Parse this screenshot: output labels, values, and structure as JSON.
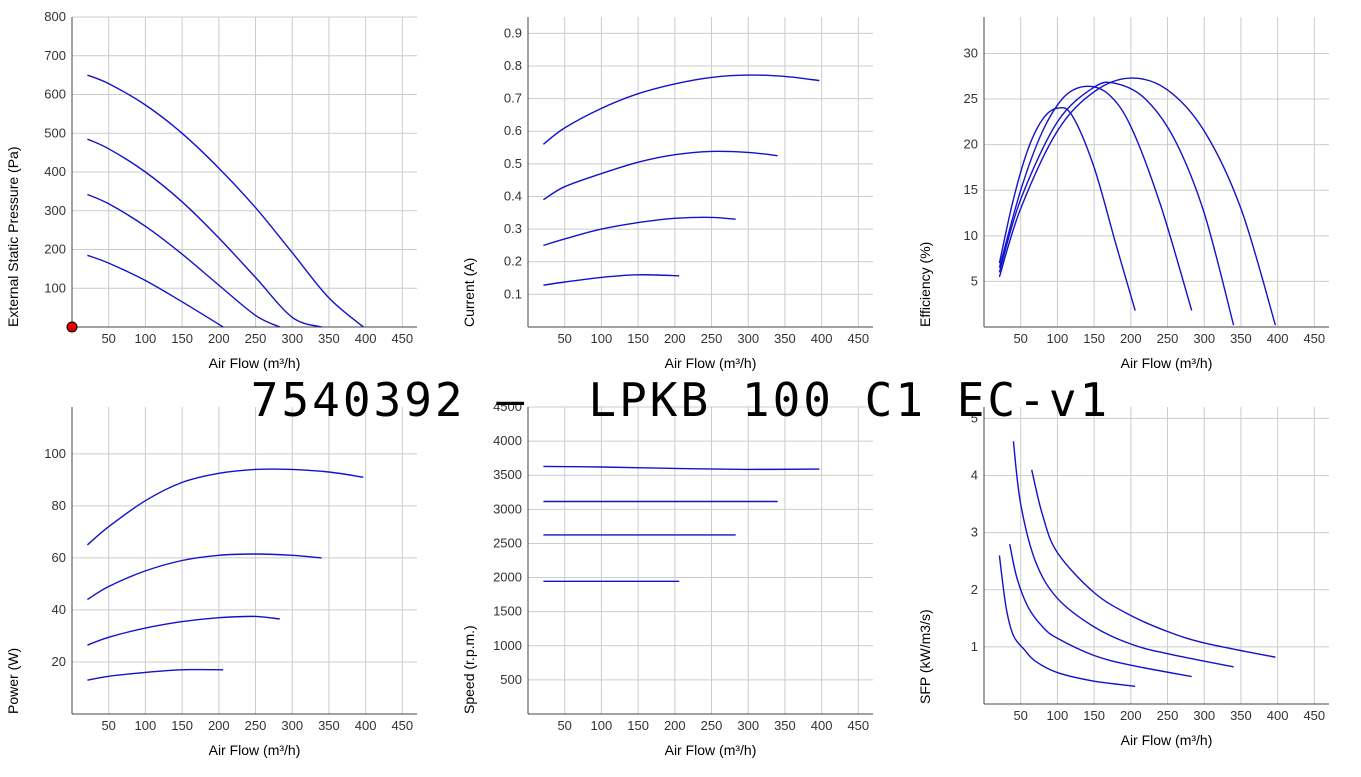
{
  "overlay_title": "7540392 –  LPKB 100 C1 EC-v1",
  "colors": {
    "curve": "#1212cc",
    "grid": "#cccccc",
    "axis": "#444444",
    "text": "#000000",
    "marker": "#e00000"
  },
  "chart_data": [
    {
      "id": "pressure",
      "type": "line",
      "xlabel": "Air Flow (m³/h)",
      "ylabel": "External Static Pressure (Pa)",
      "xlim": [
        0,
        470
      ],
      "ylim": [
        0,
        800
      ],
      "xticks": [
        50,
        100,
        150,
        200,
        250,
        300,
        350,
        400,
        450
      ],
      "yticks": [
        100,
        200,
        300,
        400,
        500,
        600,
        700,
        800
      ],
      "grid": true,
      "marker": {
        "x": 0,
        "y": 0
      },
      "series": [
        {
          "x": [
            21,
            50,
            100,
            150,
            200,
            250,
            300,
            350,
            397
          ],
          "y": [
            650,
            628,
            573,
            500,
            410,
            308,
            192,
            75,
            0
          ]
        },
        {
          "x": [
            21,
            50,
            100,
            150,
            200,
            250,
            300,
            340
          ],
          "y": [
            485,
            460,
            400,
            323,
            230,
            128,
            25,
            0
          ]
        },
        {
          "x": [
            21,
            50,
            100,
            150,
            200,
            250,
            283
          ],
          "y": [
            342,
            318,
            260,
            188,
            108,
            30,
            0
          ]
        },
        {
          "x": [
            21,
            50,
            100,
            150,
            206
          ],
          "y": [
            185,
            165,
            120,
            65,
            0
          ]
        }
      ]
    },
    {
      "id": "current",
      "type": "line",
      "xlabel": "Air Flow (m³/h)",
      "ylabel": "Current (A)",
      "xlim": [
        0,
        470
      ],
      "ylim": [
        0,
        0.95
      ],
      "xticks": [
        50,
        100,
        150,
        200,
        250,
        300,
        350,
        400,
        450
      ],
      "yticks": [
        0.1,
        0.2,
        0.3,
        0.4,
        0.5,
        0.6,
        0.7,
        0.8,
        0.9
      ],
      "grid": true,
      "series": [
        {
          "x": [
            21,
            50,
            100,
            150,
            200,
            250,
            300,
            350,
            397
          ],
          "y": [
            0.56,
            0.61,
            0.67,
            0.715,
            0.745,
            0.765,
            0.772,
            0.768,
            0.755
          ]
        },
        {
          "x": [
            21,
            50,
            100,
            150,
            200,
            250,
            300,
            340
          ],
          "y": [
            0.39,
            0.43,
            0.47,
            0.505,
            0.528,
            0.538,
            0.535,
            0.525
          ]
        },
        {
          "x": [
            21,
            50,
            100,
            150,
            200,
            250,
            283
          ],
          "y": [
            0.25,
            0.27,
            0.3,
            0.32,
            0.333,
            0.336,
            0.33
          ]
        },
        {
          "x": [
            21,
            50,
            100,
            150,
            206
          ],
          "y": [
            0.128,
            0.138,
            0.152,
            0.16,
            0.157
          ]
        }
      ]
    },
    {
      "id": "efficiency",
      "type": "line",
      "xlabel": "Air Flow (m³/h)",
      "ylabel": "Efficiency (%)",
      "xlim": [
        0,
        470
      ],
      "ylim": [
        0,
        34
      ],
      "xticks": [
        50,
        100,
        150,
        200,
        250,
        300,
        350,
        400,
        450
      ],
      "yticks": [
        5,
        10,
        15,
        20,
        25,
        30
      ],
      "grid": true,
      "series": [
        {
          "x": [
            21,
            40,
            60,
            80,
            100,
            120,
            150,
            180,
            206
          ],
          "y": [
            7.0,
            14.0,
            19.5,
            22.8,
            24.0,
            23.2,
            17.5,
            9.0,
            1.8
          ]
        },
        {
          "x": [
            21,
            50,
            80,
            110,
            140,
            170,
            200,
            240,
            283
          ],
          "y": [
            6.5,
            15.0,
            21.5,
            25.3,
            26.4,
            25.5,
            22.0,
            13.5,
            1.8
          ]
        },
        {
          "x": [
            21,
            50,
            100,
            150,
            180,
            220,
            260,
            300,
            340
          ],
          "y": [
            6.0,
            14.0,
            22.5,
            26.3,
            26.7,
            25.0,
            20.5,
            12.5,
            0.2
          ]
        },
        {
          "x": [
            21,
            50,
            100,
            150,
            200,
            250,
            300,
            350,
            397
          ],
          "y": [
            5.5,
            13.0,
            21.5,
            25.8,
            27.3,
            26.0,
            21.5,
            13.0,
            0.2
          ]
        }
      ]
    },
    {
      "id": "power",
      "type": "line",
      "xlabel": "Air Flow (m³/h)",
      "ylabel": "Power (W)",
      "xlim": [
        0,
        470
      ],
      "ylim": [
        0,
        118
      ],
      "xticks": [
        50,
        100,
        150,
        200,
        250,
        300,
        350,
        400,
        450
      ],
      "yticks": [
        20,
        40,
        60,
        80,
        100
      ],
      "grid": true,
      "series": [
        {
          "x": [
            21,
            50,
            100,
            150,
            200,
            250,
            300,
            350,
            397
          ],
          "y": [
            65,
            72,
            82,
            89,
            92.5,
            94,
            94,
            93,
            91
          ]
        },
        {
          "x": [
            21,
            50,
            100,
            150,
            200,
            250,
            300,
            340
          ],
          "y": [
            44,
            49,
            55,
            59,
            61,
            61.5,
            61,
            60
          ]
        },
        {
          "x": [
            21,
            50,
            100,
            150,
            200,
            250,
            283
          ],
          "y": [
            26.5,
            29.5,
            33,
            35.5,
            37,
            37.5,
            36.5
          ]
        },
        {
          "x": [
            21,
            50,
            100,
            150,
            206
          ],
          "y": [
            13,
            14.5,
            16,
            17,
            17
          ]
        }
      ]
    },
    {
      "id": "speed",
      "type": "line",
      "xlabel": "Air Flow (m³/h)",
      "ylabel": "Speed (r.p.m.)",
      "xlim": [
        0,
        470
      ],
      "ylim": [
        0,
        4500
      ],
      "xticks": [
        50,
        100,
        150,
        200,
        250,
        300,
        350,
        400,
        450
      ],
      "yticks": [
        500,
        1000,
        1500,
        2000,
        2500,
        3000,
        3500,
        4000,
        4500
      ],
      "grid": true,
      "series": [
        {
          "x": [
            21,
            100,
            200,
            300,
            397
          ],
          "y": [
            3630,
            3620,
            3600,
            3585,
            3590
          ]
        },
        {
          "x": [
            21,
            340
          ],
          "y": [
            3115,
            3115
          ]
        },
        {
          "x": [
            21,
            283
          ],
          "y": [
            2625,
            2625
          ]
        },
        {
          "x": [
            21,
            206
          ],
          "y": [
            1945,
            1945
          ]
        }
      ]
    },
    {
      "id": "sfp",
      "type": "line",
      "xlabel": "Air Flow (m³/h)",
      "ylabel": "SFP (kW/m3/s)",
      "xlim": [
        0,
        470
      ],
      "ylim": [
        0,
        5.2
      ],
      "xticks": [
        50,
        100,
        150,
        200,
        250,
        300,
        350,
        400,
        450
      ],
      "yticks": [
        1,
        2,
        3,
        4,
        5
      ],
      "grid": true,
      "series": [
        {
          "x": [
            21,
            30,
            40,
            55,
            70,
            100,
            150,
            206
          ],
          "y": [
            2.6,
            1.7,
            1.2,
            0.95,
            0.75,
            0.55,
            0.4,
            0.31
          ]
        },
        {
          "x": [
            35,
            45,
            60,
            80,
            100,
            150,
            200,
            283
          ],
          "y": [
            2.8,
            2.2,
            1.7,
            1.35,
            1.15,
            0.85,
            0.68,
            0.48
          ]
        },
        {
          "x": [
            40,
            50,
            70,
            100,
            150,
            200,
            250,
            340
          ],
          "y": [
            4.6,
            3.5,
            2.5,
            1.85,
            1.35,
            1.05,
            0.88,
            0.65
          ]
        },
        {
          "x": [
            65,
            80,
            100,
            150,
            200,
            250,
            300,
            397
          ],
          "y": [
            4.1,
            3.3,
            2.65,
            1.95,
            1.55,
            1.27,
            1.07,
            0.82
          ]
        }
      ]
    }
  ]
}
